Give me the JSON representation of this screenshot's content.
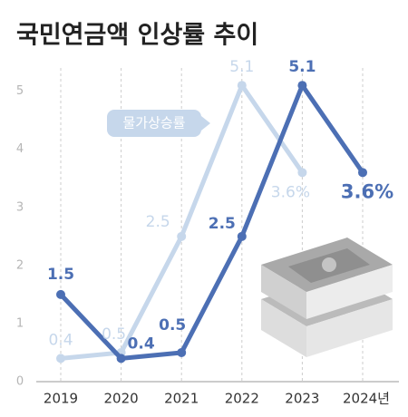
{
  "chart_data": {
    "type": "line",
    "title": "국민연금액 인상률 추이",
    "categories": [
      "2019",
      "2020",
      "2021",
      "2022",
      "2023",
      "2024년"
    ],
    "series": [
      {
        "name": "물가상승률",
        "color": "#c6d7eb",
        "values": [
          0.4,
          0.5,
          2.5,
          5.1,
          3.6,
          null
        ],
        "value_labels": [
          "0.4",
          "0.5",
          "2.5",
          "5.1",
          "3.6%",
          null
        ]
      },
      {
        "name": null,
        "color": "#4c6fb4",
        "values": [
          1.5,
          0.4,
          0.5,
          2.5,
          5.1,
          3.6
        ],
        "value_labels": [
          "1.5",
          "0.4",
          "0.5",
          "2.5",
          "5.1",
          "3.6%"
        ]
      }
    ],
    "ylim": [
      0,
      5.4
    ],
    "yticks": [
      0,
      1,
      2,
      3,
      4,
      5
    ],
    "grid": true
  }
}
